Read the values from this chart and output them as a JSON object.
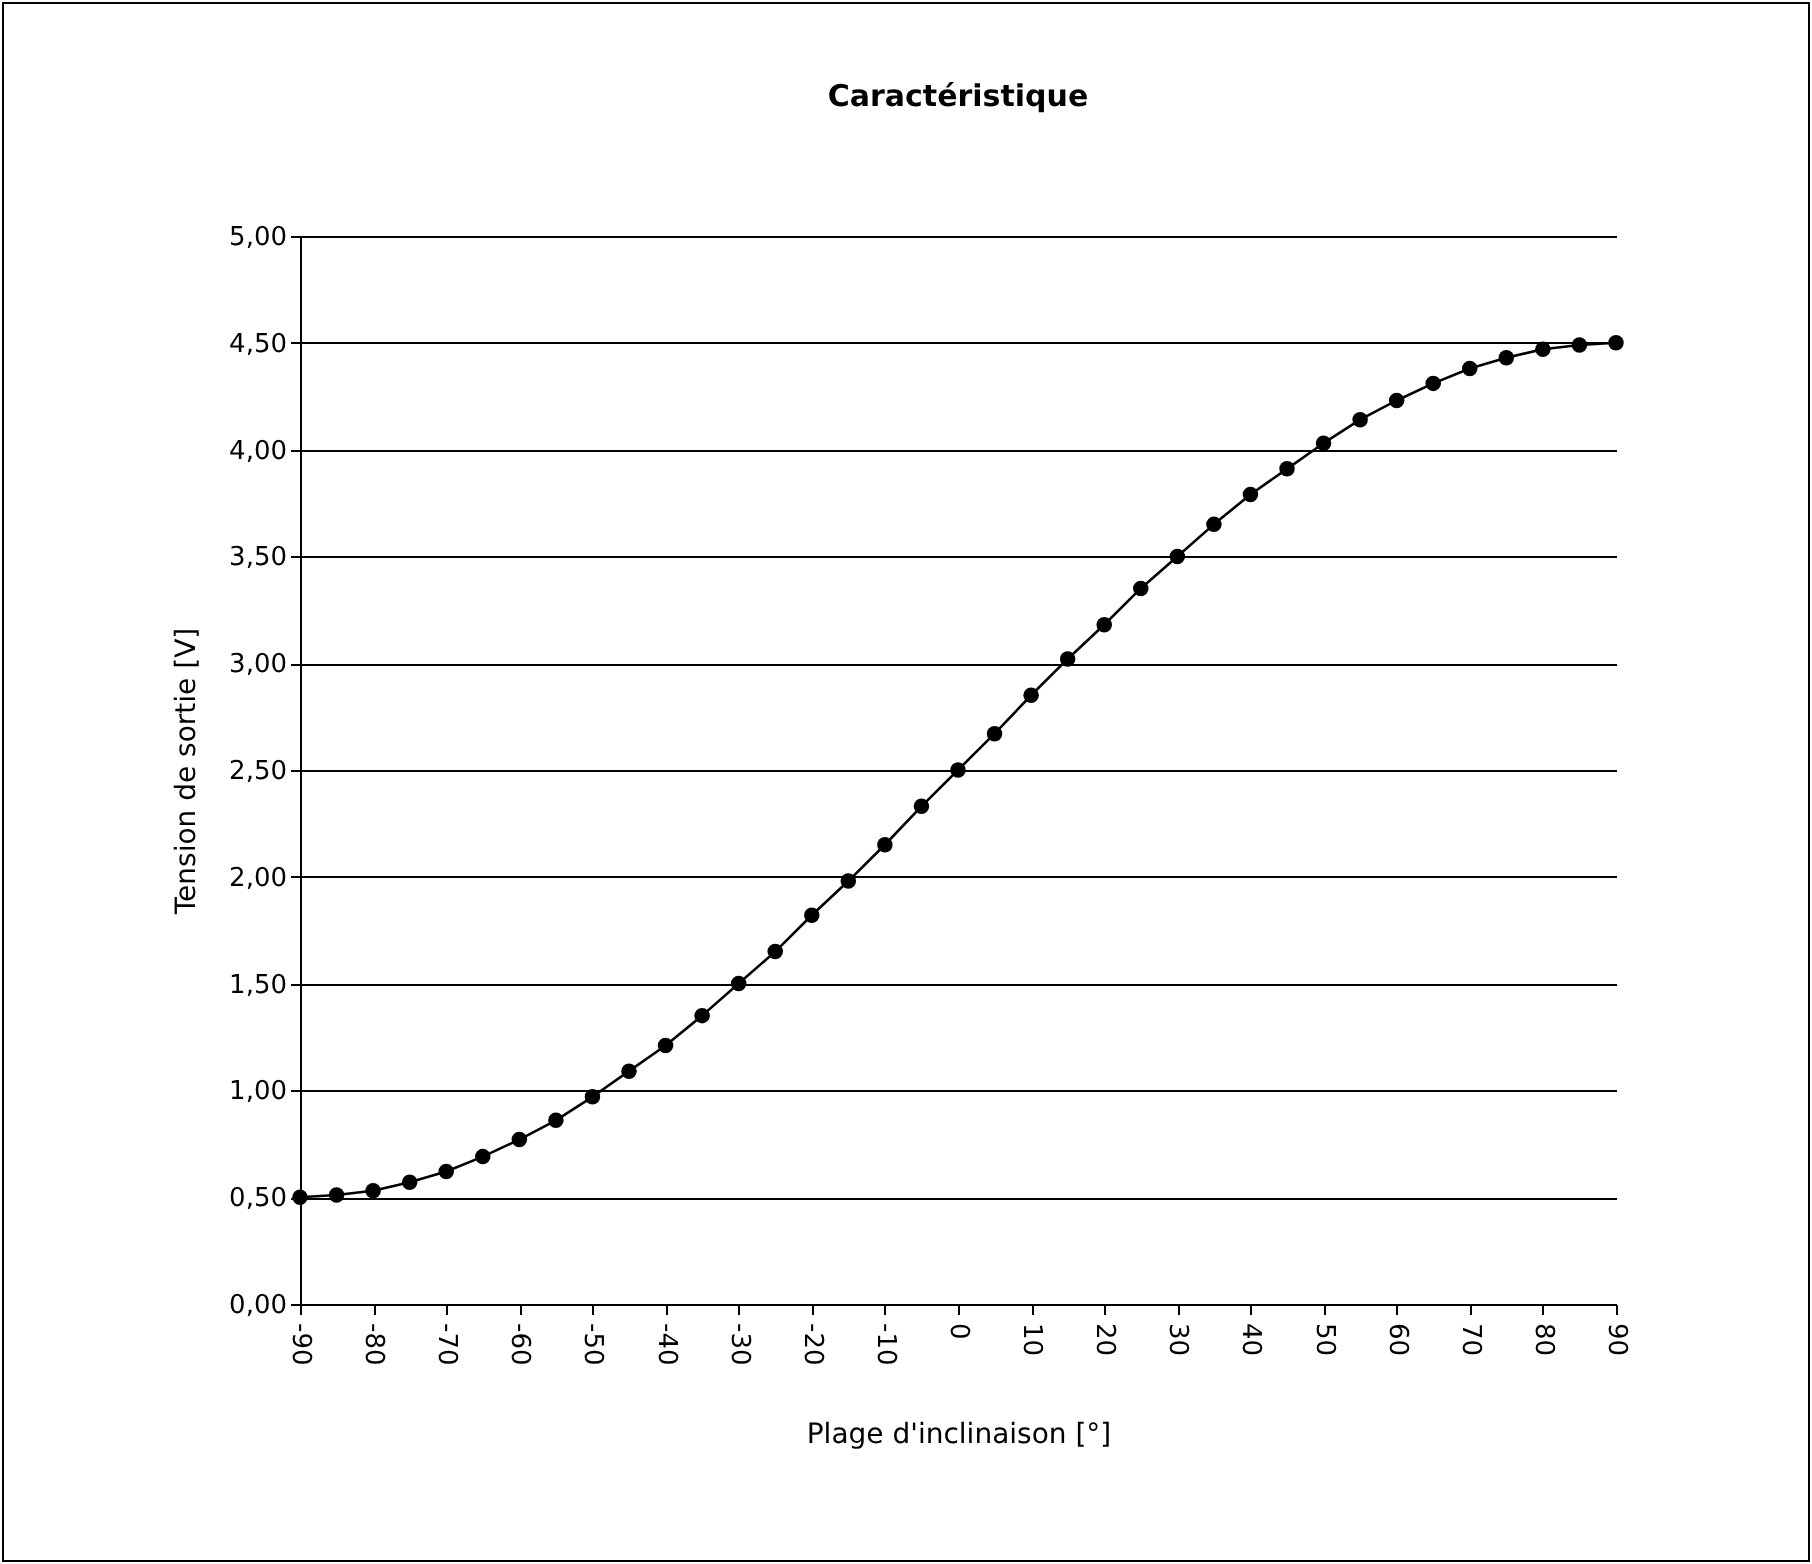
{
  "chart_data": {
    "type": "line",
    "title": "Caractéristique",
    "xlabel": "Plage d'inclinaison [°]",
    "ylabel": "Tension de sortie [V]",
    "x": [
      -90,
      -85,
      -80,
      -75,
      -70,
      -65,
      -60,
      -55,
      -50,
      -45,
      -40,
      -35,
      -30,
      -25,
      -20,
      -15,
      -10,
      -5,
      0,
      5,
      10,
      15,
      20,
      25,
      30,
      35,
      40,
      45,
      50,
      55,
      60,
      65,
      70,
      75,
      80,
      85,
      90
    ],
    "series": [
      {
        "color": "#000000",
        "values": [
          0.5,
          0.51,
          0.53,
          0.57,
          0.62,
          0.69,
          0.77,
          0.86,
          0.97,
          1.09,
          1.21,
          1.35,
          1.5,
          1.65,
          1.82,
          1.98,
          2.15,
          2.33,
          2.5,
          2.67,
          2.85,
          3.02,
          3.18,
          3.35,
          3.5,
          3.65,
          3.79,
          3.91,
          4.03,
          4.14,
          4.23,
          4.31,
          4.38,
          4.43,
          4.47,
          4.49,
          4.5
        ]
      }
    ],
    "xlim": [
      -90,
      90
    ],
    "xticks": [
      -90,
      -80,
      -70,
      -60,
      -50,
      -40,
      -30,
      -20,
      -10,
      0,
      10,
      20,
      30,
      40,
      50,
      60,
      70,
      80,
      90
    ],
    "ylim": [
      0,
      5
    ],
    "yticks": [
      {
        "value": 0,
        "label": "0,00"
      },
      {
        "value": 0.5,
        "label": "0,50"
      },
      {
        "value": 1,
        "label": "1,00"
      },
      {
        "value": 1.5,
        "label": "1,50"
      },
      {
        "value": 2,
        "label": "2,00"
      },
      {
        "value": 2.5,
        "label": "2,50"
      },
      {
        "value": 3,
        "label": "3,00"
      },
      {
        "value": 3.5,
        "label": "3,50"
      },
      {
        "value": 4,
        "label": "4,00"
      },
      {
        "value": 4.5,
        "label": "4,50"
      },
      {
        "value": 5,
        "label": "5,00"
      }
    ],
    "grid": "y",
    "marker": "circle",
    "line_style": "solid"
  }
}
